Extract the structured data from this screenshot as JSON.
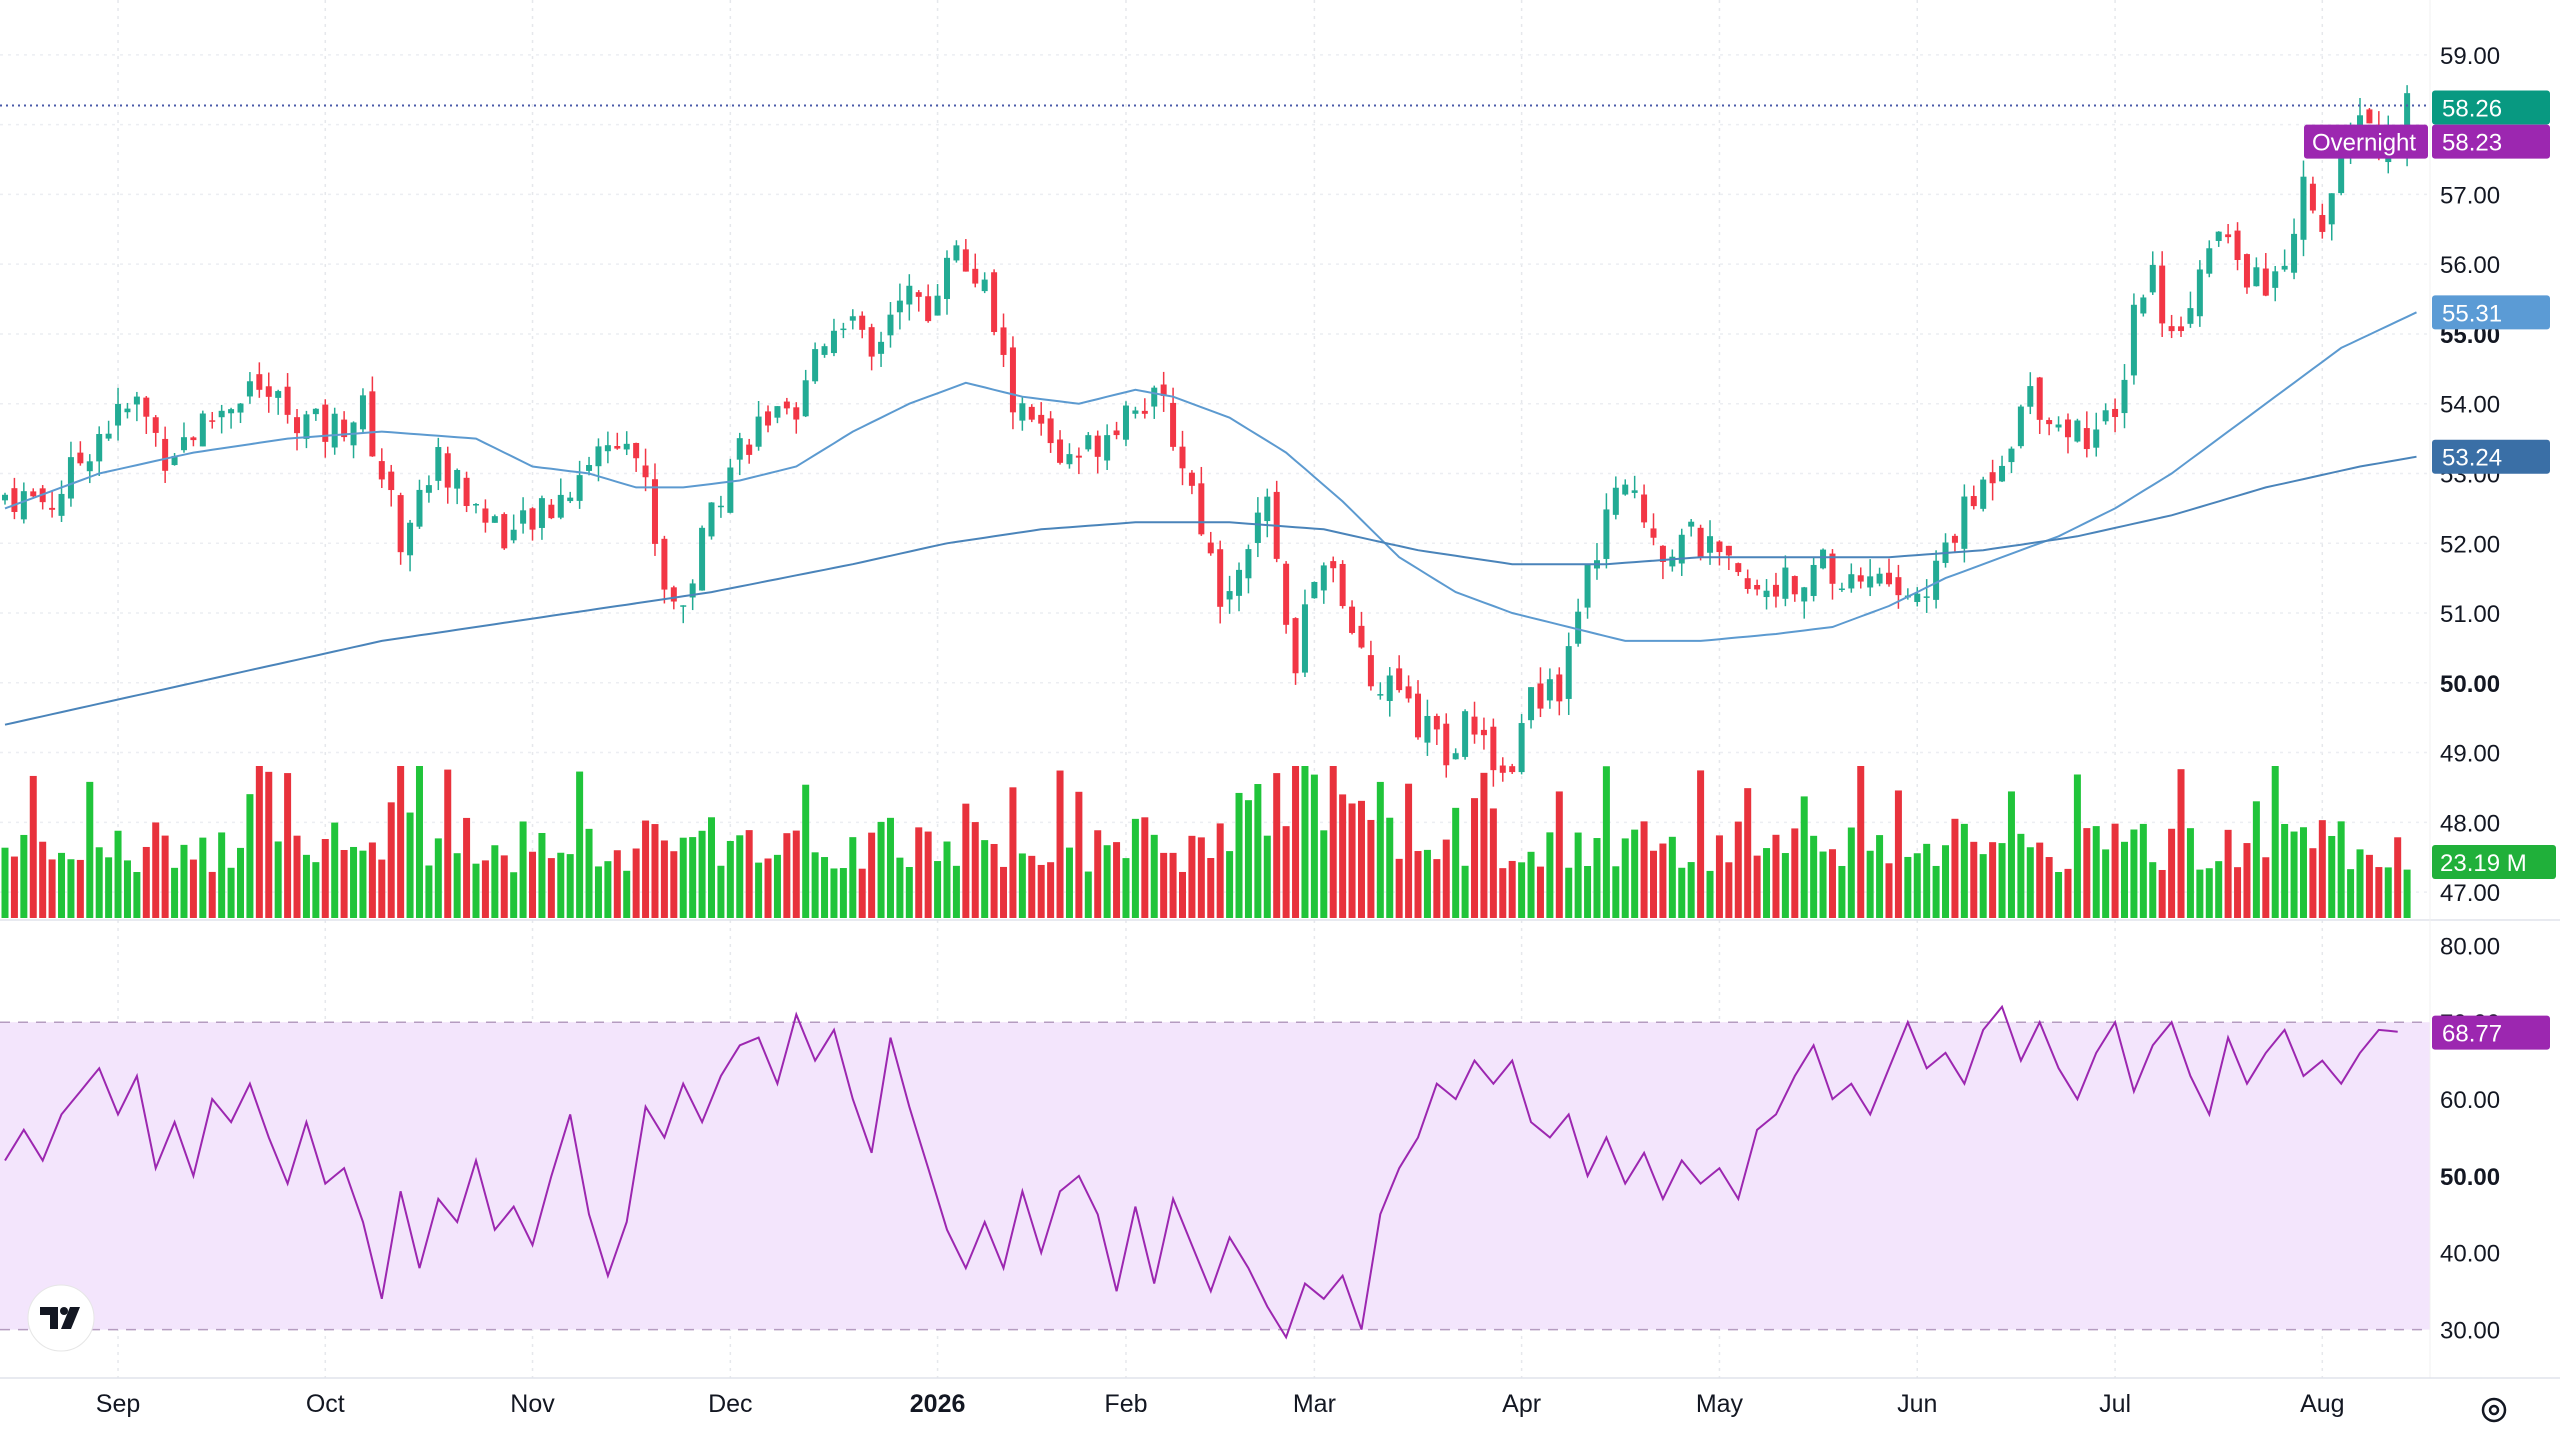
{
  "chart_data": [
    {
      "type": "candlestick",
      "pane": "price",
      "y_ticks": [
        "59.00",
        "57.00",
        "56.00",
        "55.00",
        "54.00",
        "53.00",
        "52.00",
        "51.00",
        "50.00",
        "49.00",
        "48.00",
        "47.00"
      ],
      "ylim": [
        46.6,
        59.5
      ],
      "x_ticks": [
        {
          "label": "Sep",
          "index": 12,
          "bold": false
        },
        {
          "label": "Oct",
          "index": 34,
          "bold": false
        },
        {
          "label": "Nov",
          "index": 56,
          "bold": false
        },
        {
          "label": "Dec",
          "index": 77,
          "bold": false
        },
        {
          "label": "2026",
          "index": 99,
          "bold": true
        },
        {
          "label": "Feb",
          "index": 119,
          "bold": false
        },
        {
          "label": "Mar",
          "index": 139,
          "bold": false
        },
        {
          "label": "Apr",
          "index": 161,
          "bold": false
        },
        {
          "label": "May",
          "index": 182,
          "bold": false
        },
        {
          "label": "Jun",
          "index": 203,
          "bold": false
        },
        {
          "label": "Jul",
          "index": 224,
          "bold": false
        },
        {
          "label": "Aug",
          "index": 246,
          "bold": false
        }
      ],
      "bars": 256,
      "anchors": [
        [
          0,
          52.7
        ],
        [
          5,
          52.6
        ],
        [
          10,
          53.6
        ],
        [
          14,
          54.0
        ],
        [
          17,
          53.3
        ],
        [
          22,
          53.8
        ],
        [
          26,
          54.3
        ],
        [
          30,
          53.9
        ],
        [
          34,
          53.6
        ],
        [
          38,
          53.9
        ],
        [
          42,
          52.1
        ],
        [
          46,
          53.2
        ],
        [
          50,
          52.5
        ],
        [
          54,
          52.1
        ],
        [
          58,
          52.5
        ],
        [
          62,
          53.2
        ],
        [
          66,
          53.7
        ],
        [
          68,
          52.8
        ],
        [
          70,
          51.4
        ],
        [
          72,
          51.1
        ],
        [
          75,
          52.5
        ],
        [
          78,
          53.4
        ],
        [
          81,
          53.8
        ],
        [
          84,
          53.6
        ],
        [
          86,
          54.8
        ],
        [
          89,
          55.3
        ],
        [
          92,
          54.6
        ],
        [
          95,
          55.7
        ],
        [
          98,
          55.2
        ],
        [
          100,
          56.3
        ],
        [
          104,
          55.6
        ],
        [
          107,
          54.0
        ],
        [
          110,
          53.6
        ],
        [
          113,
          53.1
        ],
        [
          116,
          53.5
        ],
        [
          120,
          54.1
        ],
        [
          123,
          53.9
        ],
        [
          126,
          52.8
        ],
        [
          129,
          51.3
        ],
        [
          132,
          52.0
        ],
        [
          134,
          52.4
        ],
        [
          137,
          50.4
        ],
        [
          140,
          51.9
        ],
        [
          143,
          50.5
        ],
        [
          146,
          50.0
        ],
        [
          148,
          49.7
        ],
        [
          151,
          49.3
        ],
        [
          153,
          49.0
        ],
        [
          156,
          49.5
        ],
        [
          159,
          48.6
        ],
        [
          162,
          49.7
        ],
        [
          165,
          50.0
        ],
        [
          167,
          51.1
        ],
        [
          170,
          52.4
        ],
        [
          173,
          52.8
        ],
        [
          176,
          51.9
        ],
        [
          179,
          52.1
        ],
        [
          182,
          51.7
        ],
        [
          185,
          51.3
        ],
        [
          188,
          51.5
        ],
        [
          191,
          51.2
        ],
        [
          193,
          51.7
        ],
        [
          195,
          51.4
        ],
        [
          198,
          51.6
        ],
        [
          201,
          51.3
        ],
        [
          204,
          51.2
        ],
        [
          206,
          52.0
        ],
        [
          209,
          52.6
        ],
        [
          212,
          53.3
        ],
        [
          215,
          54.2
        ],
        [
          218,
          53.7
        ],
        [
          221,
          53.6
        ],
        [
          224,
          53.7
        ],
        [
          226,
          55.4
        ],
        [
          228,
          55.9
        ],
        [
          230,
          54.9
        ],
        [
          232,
          55.6
        ],
        [
          235,
          56.4
        ],
        [
          238,
          55.9
        ],
        [
          240,
          55.6
        ],
        [
          242,
          56.0
        ],
        [
          244,
          57.1
        ],
        [
          246,
          56.7
        ],
        [
          248,
          57.3
        ],
        [
          250,
          58.3
        ],
        [
          252,
          57.6
        ],
        [
          254,
          57.9
        ],
        [
          255,
          58.23
        ]
      ],
      "ma_short": [
        [
          0,
          52.5
        ],
        [
          10,
          53.0
        ],
        [
          20,
          53.3
        ],
        [
          30,
          53.5
        ],
        [
          40,
          53.6
        ],
        [
          50,
          53.5
        ],
        [
          56,
          53.1
        ],
        [
          62,
          53.0
        ],
        [
          67,
          52.8
        ],
        [
          72,
          52.8
        ],
        [
          78,
          52.9
        ],
        [
          84,
          53.1
        ],
        [
          90,
          53.6
        ],
        [
          96,
          54.0
        ],
        [
          102,
          54.3
        ],
        [
          108,
          54.1
        ],
        [
          114,
          54.0
        ],
        [
          120,
          54.2
        ],
        [
          124,
          54.1
        ],
        [
          130,
          53.8
        ],
        [
          136,
          53.3
        ],
        [
          142,
          52.6
        ],
        [
          148,
          51.8
        ],
        [
          154,
          51.3
        ],
        [
          160,
          51.0
        ],
        [
          166,
          50.8
        ],
        [
          172,
          50.6
        ],
        [
          180,
          50.6
        ],
        [
          188,
          50.7
        ],
        [
          194,
          50.8
        ],
        [
          200,
          51.1
        ],
        [
          206,
          51.5
        ],
        [
          212,
          51.8
        ],
        [
          218,
          52.1
        ],
        [
          224,
          52.5
        ],
        [
          230,
          53.0
        ],
        [
          236,
          53.6
        ],
        [
          242,
          54.2
        ],
        [
          248,
          54.8
        ],
        [
          256,
          55.31
        ]
      ],
      "ma_long": [
        [
          0,
          49.4
        ],
        [
          20,
          50.0
        ],
        [
          40,
          50.6
        ],
        [
          60,
          51.0
        ],
        [
          75,
          51.3
        ],
        [
          90,
          51.7
        ],
        [
          100,
          52.0
        ],
        [
          110,
          52.2
        ],
        [
          120,
          52.3
        ],
        [
          130,
          52.3
        ],
        [
          140,
          52.2
        ],
        [
          150,
          51.9
        ],
        [
          160,
          51.7
        ],
        [
          170,
          51.7
        ],
        [
          180,
          51.8
        ],
        [
          190,
          51.8
        ],
        [
          200,
          51.8
        ],
        [
          210,
          51.9
        ],
        [
          220,
          52.1
        ],
        [
          230,
          52.4
        ],
        [
          240,
          52.8
        ],
        [
          250,
          53.1
        ],
        [
          256,
          53.24
        ]
      ],
      "volume_max": 60,
      "price_lines": [
        {
          "label": "58.26",
          "value": 58.26,
          "color": "#089981",
          "dotted": true
        },
        {
          "label": "58.23",
          "value": 58.23,
          "color": "#9c27b0",
          "tag": "Overnight"
        },
        {
          "label": "55.31",
          "value": 55.31,
          "color": "#5b9bd5"
        },
        {
          "label": "53.24",
          "value": 53.24,
          "color": "#3a6fa6"
        }
      ],
      "volume_label": "23.19 M",
      "colors": {
        "up": "#22ab94",
        "down": "#f23645",
        "vol_up": "#20c43a",
        "vol_down": "#e8323c",
        "ma": "#5c9ad0"
      }
    },
    {
      "type": "line",
      "pane": "rsi",
      "y_ticks": [
        "80.00",
        "70.00",
        "60.00",
        "50.00",
        "40.00",
        "30.00"
      ],
      "ylim": [
        25,
        82
      ],
      "band": [
        30,
        70
      ],
      "anchors": [
        [
          0,
          52
        ],
        [
          2,
          56
        ],
        [
          4,
          52
        ],
        [
          6,
          58
        ],
        [
          8,
          61
        ],
        [
          10,
          64
        ],
        [
          12,
          58
        ],
        [
          14,
          63
        ],
        [
          16,
          51
        ],
        [
          18,
          57
        ],
        [
          20,
          50
        ],
        [
          22,
          60
        ],
        [
          24,
          57
        ],
        [
          26,
          62
        ],
        [
          28,
          55
        ],
        [
          30,
          49
        ],
        [
          32,
          57
        ],
        [
          34,
          49
        ],
        [
          36,
          51
        ],
        [
          38,
          44
        ],
        [
          40,
          34
        ],
        [
          42,
          48
        ],
        [
          44,
          38
        ],
        [
          46,
          47
        ],
        [
          48,
          44
        ],
        [
          50,
          52
        ],
        [
          52,
          43
        ],
        [
          54,
          46
        ],
        [
          56,
          41
        ],
        [
          58,
          50
        ],
        [
          60,
          58
        ],
        [
          62,
          45
        ],
        [
          64,
          37
        ],
        [
          66,
          44
        ],
        [
          68,
          59
        ],
        [
          70,
          55
        ],
        [
          72,
          62
        ],
        [
          74,
          57
        ],
        [
          76,
          63
        ],
        [
          78,
          67
        ],
        [
          80,
          68
        ],
        [
          82,
          62
        ],
        [
          84,
          71
        ],
        [
          86,
          65
        ],
        [
          88,
          69
        ],
        [
          90,
          60
        ],
        [
          92,
          53
        ],
        [
          94,
          68
        ],
        [
          96,
          59
        ],
        [
          98,
          51
        ],
        [
          100,
          43
        ],
        [
          102,
          38
        ],
        [
          104,
          44
        ],
        [
          106,
          38
        ],
        [
          108,
          48
        ],
        [
          110,
          40
        ],
        [
          112,
          48
        ],
        [
          114,
          50
        ],
        [
          116,
          45
        ],
        [
          118,
          35
        ],
        [
          120,
          46
        ],
        [
          122,
          36
        ],
        [
          124,
          47
        ],
        [
          126,
          41
        ],
        [
          128,
          35
        ],
        [
          130,
          42
        ],
        [
          132,
          38
        ],
        [
          134,
          33
        ],
        [
          136,
          29
        ],
        [
          138,
          36
        ],
        [
          140,
          34
        ],
        [
          142,
          37
        ],
        [
          144,
          30
        ],
        [
          146,
          45
        ],
        [
          148,
          51
        ],
        [
          150,
          55
        ],
        [
          152,
          62
        ],
        [
          154,
          60
        ],
        [
          156,
          65
        ],
        [
          158,
          62
        ],
        [
          160,
          65
        ],
        [
          162,
          57
        ],
        [
          164,
          55
        ],
        [
          166,
          58
        ],
        [
          168,
          50
        ],
        [
          170,
          55
        ],
        [
          172,
          49
        ],
        [
          174,
          53
        ],
        [
          176,
          47
        ],
        [
          178,
          52
        ],
        [
          180,
          49
        ],
        [
          182,
          51
        ],
        [
          184,
          47
        ],
        [
          186,
          56
        ],
        [
          188,
          58
        ],
        [
          190,
          63
        ],
        [
          192,
          67
        ],
        [
          194,
          60
        ],
        [
          196,
          62
        ],
        [
          198,
          58
        ],
        [
          200,
          64
        ],
        [
          202,
          70
        ],
        [
          204,
          64
        ],
        [
          206,
          66
        ],
        [
          208,
          62
        ],
        [
          210,
          69
        ],
        [
          212,
          72
        ],
        [
          214,
          65
        ],
        [
          216,
          70
        ],
        [
          218,
          64
        ],
        [
          220,
          60
        ],
        [
          222,
          66
        ],
        [
          224,
          70
        ],
        [
          226,
          61
        ],
        [
          228,
          67
        ],
        [
          230,
          70
        ],
        [
          232,
          63
        ],
        [
          234,
          58
        ],
        [
          236,
          68
        ],
        [
          238,
          62
        ],
        [
          240,
          66
        ],
        [
          242,
          69
        ],
        [
          244,
          63
        ],
        [
          246,
          65
        ],
        [
          248,
          62
        ],
        [
          250,
          66
        ],
        [
          252,
          69
        ],
        [
          254,
          68.77
        ]
      ],
      "value_label": "68.77",
      "colors": {
        "line": "#9c27b0",
        "band_fill": "#f3e5fc",
        "band_border": "#b59cc0"
      }
    }
  ]
}
